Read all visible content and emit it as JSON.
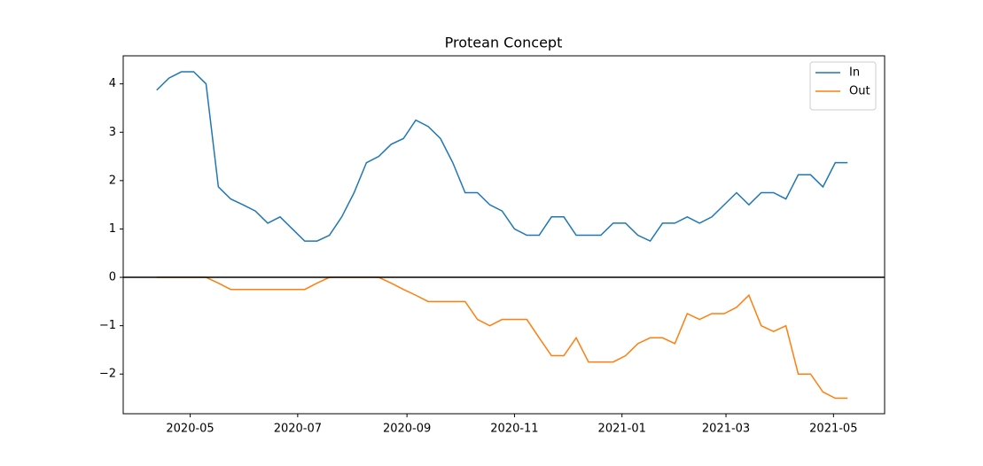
{
  "chart_data": {
    "type": "line",
    "title": "Protean Concept",
    "x": [
      "2020-04-12",
      "2020-04-19",
      "2020-04-26",
      "2020-05-03",
      "2020-05-10",
      "2020-05-17",
      "2020-05-24",
      "2020-05-31",
      "2020-06-07",
      "2020-06-14",
      "2020-06-21",
      "2020-06-28",
      "2020-07-05",
      "2020-07-12",
      "2020-07-19",
      "2020-07-26",
      "2020-08-02",
      "2020-08-09",
      "2020-08-16",
      "2020-08-23",
      "2020-08-30",
      "2020-09-06",
      "2020-09-13",
      "2020-09-20",
      "2020-09-27",
      "2020-10-04",
      "2020-10-11",
      "2020-10-18",
      "2020-10-25",
      "2020-11-01",
      "2020-11-08",
      "2020-11-15",
      "2020-11-22",
      "2020-11-29",
      "2020-12-06",
      "2020-12-13",
      "2020-12-20",
      "2020-12-27",
      "2021-01-03",
      "2021-01-10",
      "2021-01-17",
      "2021-01-24",
      "2021-01-31",
      "2021-02-07",
      "2021-02-14",
      "2021-02-21",
      "2021-02-28",
      "2021-03-07",
      "2021-03-14",
      "2021-03-21",
      "2021-03-28",
      "2021-04-04",
      "2021-04-11",
      "2021-04-18",
      "2021-04-25",
      "2021-05-02",
      "2021-05-09"
    ],
    "series": [
      {
        "name": "In",
        "color": "#1f77b4",
        "values": [
          3.87,
          4.12,
          4.25,
          4.25,
          4.0,
          1.87,
          1.62,
          1.5,
          1.37,
          1.12,
          1.25,
          1.0,
          0.75,
          0.75,
          0.87,
          1.25,
          1.75,
          2.37,
          2.5,
          2.75,
          2.87,
          3.25,
          3.12,
          2.87,
          2.37,
          1.75,
          1.75,
          1.5,
          1.37,
          1.0,
          0.87,
          0.87,
          1.25,
          1.25,
          0.87,
          0.87,
          0.87,
          1.12,
          1.12,
          0.87,
          0.75,
          1.12,
          1.12,
          1.25,
          1.12,
          1.25,
          1.5,
          1.75,
          1.5,
          1.75,
          1.75,
          1.62,
          2.12,
          2.12,
          1.87,
          2.37,
          2.37
        ]
      },
      {
        "name": "Out",
        "color": "#ff7f0e",
        "values": [
          0,
          0,
          0,
          0,
          0,
          -0.12,
          -0.25,
          -0.25,
          -0.25,
          -0.25,
          -0.25,
          -0.25,
          -0.25,
          -0.12,
          0,
          0,
          0,
          0,
          0,
          -0.12,
          -0.25,
          -0.37,
          -0.5,
          -0.5,
          -0.5,
          -0.5,
          -0.87,
          -1.0,
          -0.87,
          -0.87,
          -0.87,
          -1.25,
          -1.62,
          -1.62,
          -1.25,
          -1.75,
          -1.75,
          -1.75,
          -1.62,
          -1.37,
          -1.25,
          -1.25,
          -1.37,
          -0.75,
          -0.87,
          -0.75,
          -0.75,
          -0.62,
          -0.37,
          -1.0,
          -1.12,
          -1.0,
          -2.0,
          -2.0,
          -2.37,
          -2.5,
          -2.5
        ]
      }
    ],
    "xlim": [
      "2020-03-24",
      "2021-05-30"
    ],
    "xticks": [
      {
        "value": "2020-05-01",
        "label": "2020-05"
      },
      {
        "value": "2020-07-01",
        "label": "2020-07"
      },
      {
        "value": "2020-09-01",
        "label": "2020-09"
      },
      {
        "value": "2020-11-01",
        "label": "2020-11"
      },
      {
        "value": "2021-01-01",
        "label": "2021-01"
      },
      {
        "value": "2021-03-01",
        "label": "2021-03"
      },
      {
        "value": "2021-05-01",
        "label": "2021-05"
      }
    ],
    "ylim": [
      -2.82,
      4.58
    ],
    "yticks": [
      {
        "value": -2,
        "label": "−2"
      },
      {
        "value": -1,
        "label": "−1"
      },
      0,
      1,
      2,
      3,
      4
    ],
    "axhline": 0,
    "axhline_color": "#000000",
    "legend": "upper right",
    "grid": false
  }
}
